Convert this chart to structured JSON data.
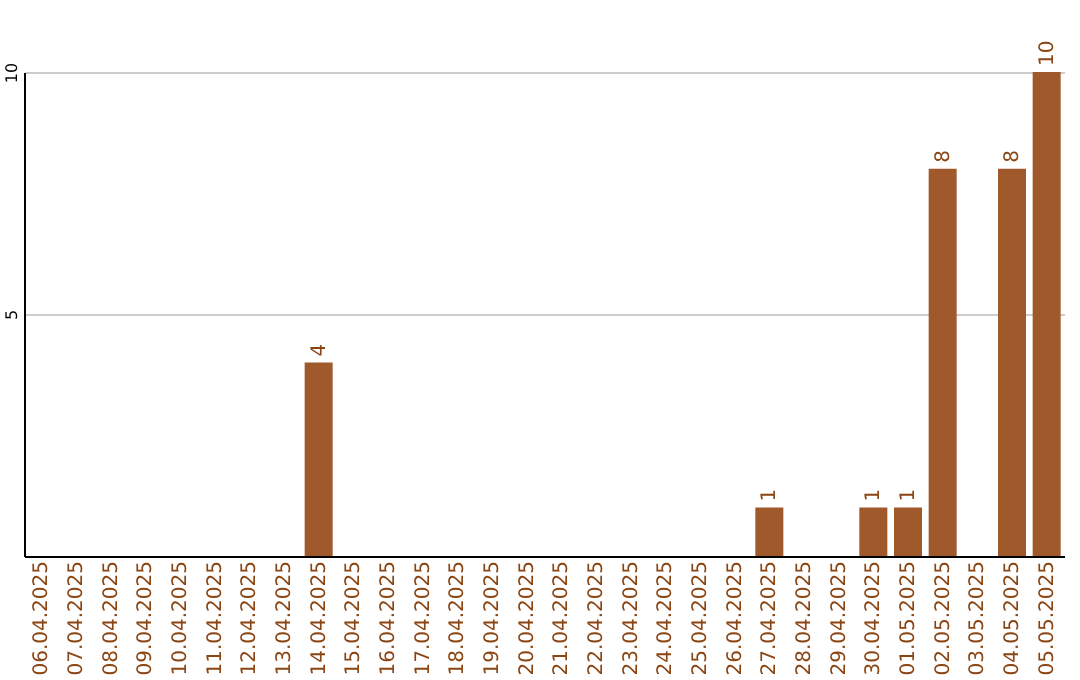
{
  "chart_data": {
    "type": "bar",
    "categories": [
      "06.04.2025",
      "07.04.2025",
      "08.04.2025",
      "09.04.2025",
      "10.04.2025",
      "11.04.2025",
      "12.04.2025",
      "13.04.2025",
      "14.04.2025",
      "15.04.2025",
      "16.04.2025",
      "17.04.2025",
      "18.04.2025",
      "19.04.2025",
      "20.04.2025",
      "21.04.2025",
      "22.04.2025",
      "23.04.2025",
      "24.04.2025",
      "25.04.2025",
      "26.04.2025",
      "27.04.2025",
      "28.04.2025",
      "29.04.2025",
      "30.04.2025",
      "01.05.2025",
      "02.05.2025",
      "03.05.2025",
      "04.05.2025",
      "05.05.2025"
    ],
    "values": [
      0,
      0,
      0,
      0,
      0,
      0,
      0,
      0,
      4,
      0,
      0,
      0,
      0,
      0,
      0,
      0,
      0,
      0,
      0,
      0,
      0,
      1,
      0,
      0,
      1,
      1,
      8,
      0,
      8,
      10
    ],
    "value_labels": [
      null,
      null,
      null,
      null,
      null,
      null,
      null,
      null,
      "4",
      null,
      null,
      null,
      null,
      null,
      null,
      null,
      null,
      null,
      null,
      null,
      null,
      "1",
      null,
      null,
      "1",
      "1",
      "8",
      null,
      "8",
      "10"
    ],
    "color": "#a0592a",
    "ylim": [
      0,
      10
    ],
    "yticks": [
      5,
      10
    ],
    "grid": "y"
  }
}
